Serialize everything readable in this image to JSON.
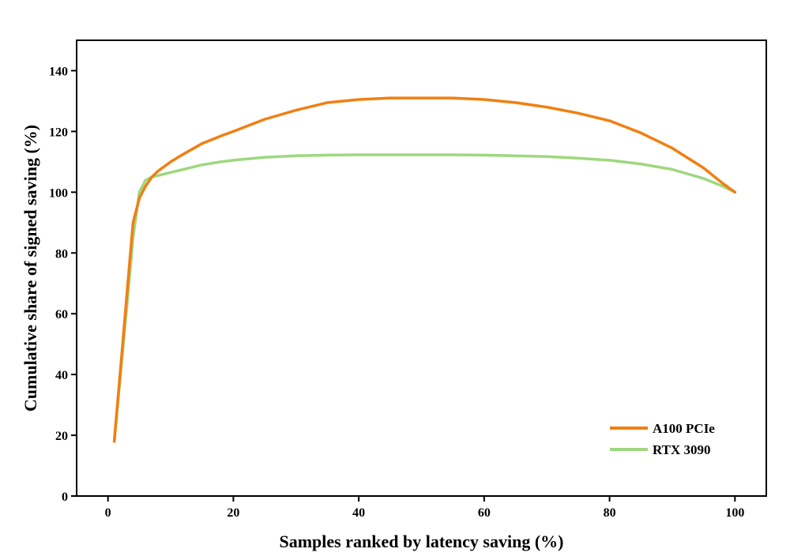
{
  "chart_data": {
    "type": "line",
    "title": "",
    "xlabel": "Samples ranked by latency saving (%)",
    "ylabel": "Cumulative share of signed saving (%)",
    "xlim": [
      -5,
      105
    ],
    "ylim": [
      0,
      150
    ],
    "xticks": [
      0,
      20,
      40,
      60,
      80,
      100
    ],
    "yticks": [
      0,
      20,
      40,
      60,
      80,
      100,
      120,
      140
    ],
    "grid": false,
    "legend_position": "bottom-right",
    "series": [
      {
        "name": "A100 PCIe",
        "color": "#f07f12",
        "x": [
          1,
          2,
          3,
          4,
          5,
          6,
          7,
          8,
          10,
          12,
          15,
          18,
          20,
          25,
          30,
          35,
          40,
          45,
          50,
          55,
          60,
          65,
          70,
          75,
          80,
          85,
          90,
          95,
          98,
          100
        ],
        "y": [
          18,
          42,
          66,
          90,
          98,
          102,
          105,
          107,
          110,
          112.5,
          116,
          118.5,
          120,
          124,
          127,
          129.5,
          130.5,
          131,
          131,
          131,
          130.5,
          129.5,
          128,
          126,
          123.5,
          119.5,
          114.5,
          108,
          103,
          100
        ]
      },
      {
        "name": "RTX 3090",
        "color": "#9ed87e",
        "x": [
          1,
          2,
          3,
          4,
          5,
          6,
          7,
          8,
          10,
          12,
          15,
          18,
          20,
          25,
          30,
          35,
          40,
          45,
          50,
          55,
          60,
          65,
          70,
          75,
          80,
          85,
          90,
          95,
          98,
          100
        ],
        "y": [
          18,
          40,
          62,
          85,
          100,
          104,
          105,
          105.5,
          106.5,
          107.5,
          109,
          110,
          110.5,
          111.5,
          112,
          112.2,
          112.3,
          112.3,
          112.3,
          112.3,
          112.2,
          112,
          111.7,
          111.2,
          110.5,
          109.3,
          107.5,
          104.5,
          102,
          100
        ]
      }
    ]
  }
}
